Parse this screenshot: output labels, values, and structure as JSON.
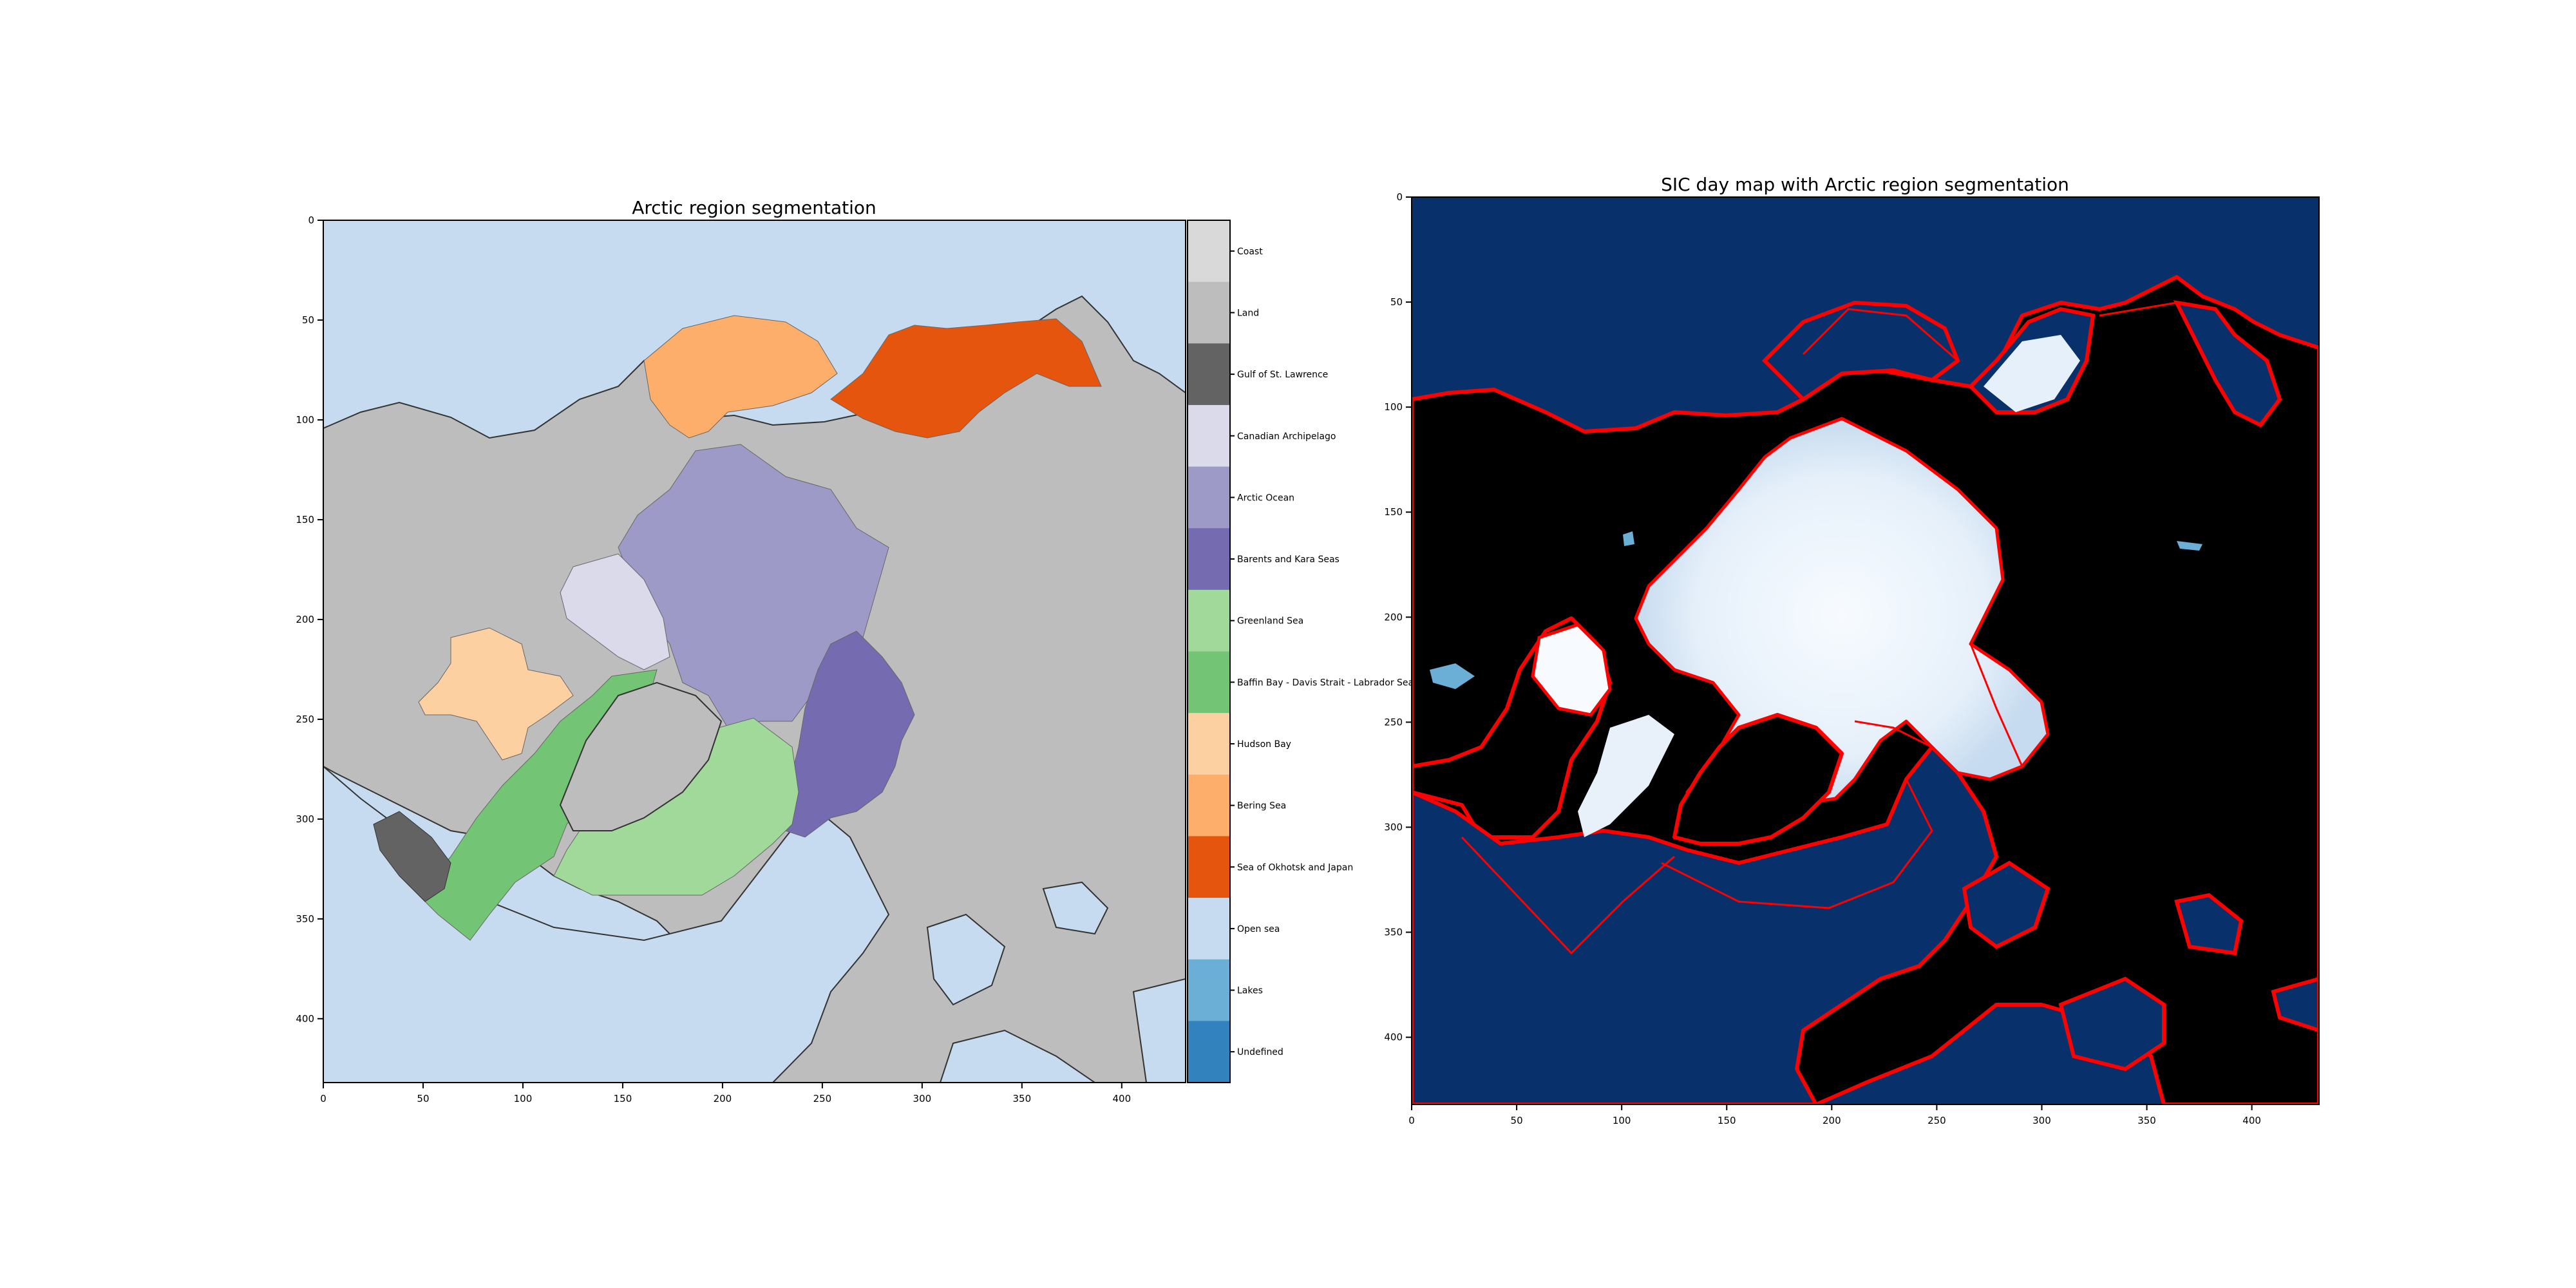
{
  "panel_left": {
    "title": "Arctic region segmentation",
    "x_ticks": [
      "0",
      "50",
      "100",
      "150",
      "200",
      "250",
      "300",
      "350",
      "400"
    ],
    "y_ticks": [
      "0",
      "50",
      "100",
      "150",
      "200",
      "250",
      "300",
      "350",
      "400"
    ],
    "colorbar": [
      {
        "label": "Coast",
        "color": "#d9d9d9"
      },
      {
        "label": "Land",
        "color": "#bdbdbd"
      },
      {
        "label": "Gulf of St. Lawrence",
        "color": "#636363"
      },
      {
        "label": "Canadian Archipelago",
        "color": "#dadaeb"
      },
      {
        "label": "Arctic Ocean",
        "color": "#9e9ac8"
      },
      {
        "label": "Barents and Kara Seas",
        "color": "#756bb1"
      },
      {
        "label": "Greenland Sea",
        "color": "#a1d99b"
      },
      {
        "label": "Baffin Bay - Davis Strait - Labrador Sea",
        "color": "#74c476"
      },
      {
        "label": "Hudson Bay",
        "color": "#fdd0a2"
      },
      {
        "label": "Bering Sea",
        "color": "#fdae6b"
      },
      {
        "label": "Sea of Okhotsk and Japan",
        "color": "#e6550d"
      },
      {
        "label": "Open sea",
        "color": "#c6dbef"
      },
      {
        "label": "Lakes",
        "color": "#6baed6"
      },
      {
        "label": "Undefined",
        "color": "#3182bd"
      }
    ]
  },
  "panel_right": {
    "title": "SIC day map with Arctic region segmentation",
    "x_ticks": [
      "0",
      "50",
      "100",
      "150",
      "200",
      "250",
      "300",
      "350",
      "400"
    ],
    "y_ticks": [
      "0",
      "50",
      "100",
      "150",
      "200",
      "250",
      "300",
      "350",
      "400"
    ],
    "colors": {
      "sea": "#08306b",
      "land": "#000000",
      "ice": "#f7fbff",
      "outline": "#ff0000"
    }
  }
}
